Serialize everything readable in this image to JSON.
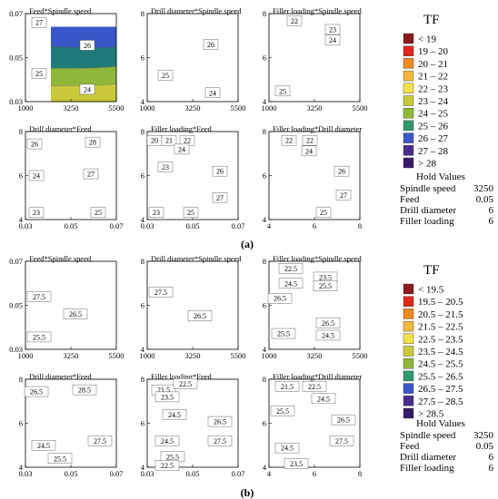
{
  "colors": {
    "c0": "#8c1a1a",
    "c1": "#e0261b",
    "c2": "#f08a1c",
    "c3": "#f5b83c",
    "c4": "#f6e04a",
    "c5": "#c9c93a",
    "c6": "#8fb83a",
    "c7": "#2f9a6a",
    "c8": "#1f7a7a",
    "c9": "#3b56c8",
    "c10": "#4a2a8c",
    "c11": "#3a1a6a"
  },
  "chart_data": [
    {
      "panel": "a",
      "caption": "(a)",
      "legend": {
        "title": "TF",
        "entries": [
          "< 19",
          "19 – 20",
          "20 – 21",
          "21 – 22",
          "22 – 23",
          "23 – 24",
          "24 – 25",
          "25 – 26",
          "26 – 27",
          "27 – 28",
          "> 28"
        ],
        "colors": [
          "#8c1a1a",
          "#e0261b",
          "#f08a1c",
          "#f5b83c",
          "#f6e04a",
          "#c9c93a",
          "#8fb83a",
          "#2f9a6a",
          "#3b56c8",
          "#4a2a8c",
          "#3a1a6a"
        ]
      },
      "hold": {
        "title": "Hold Values",
        "rows": [
          {
            "name": "Spindle speed",
            "value": "3250"
          },
          {
            "name": "Feed",
            "value": "0.05"
          },
          {
            "name": "Drill diameter",
            "value": "6"
          },
          {
            "name": "Filler loading",
            "value": "6"
          }
        ]
      },
      "plots": [
        {
          "type": "heatmap",
          "title": "Feed*Spindle speed",
          "x_ticks": [
            "1000",
            "3250",
            "5500"
          ],
          "y_ticks": [
            "0.03",
            "0.05",
            "0.07"
          ],
          "labels": [
            "27",
            "26",
            "25",
            "24"
          ]
        },
        {
          "type": "heatmap",
          "title": "Drill diameter*Spindle speed",
          "x_ticks": [
            "1000",
            "3250",
            "5500"
          ],
          "y_ticks": [
            "4",
            "6",
            "8"
          ],
          "labels": [
            "26",
            "25",
            "24"
          ]
        },
        {
          "type": "heatmap",
          "title": "Filler loading*Spindle speed",
          "x_ticks": [
            "1000",
            "3250",
            "5500"
          ],
          "y_ticks": [
            "4",
            "6",
            "8"
          ],
          "labels": [
            "22",
            "23",
            "24",
            "25"
          ]
        },
        {
          "type": "heatmap",
          "title": "Drill diameter*Feed",
          "x_ticks": [
            "0.03",
            "0.05",
            "0.07"
          ],
          "y_ticks": [
            "4",
            "6",
            "8"
          ],
          "labels": [
            "26",
            "28",
            "24",
            "27",
            "23",
            "25"
          ]
        },
        {
          "type": "heatmap",
          "title": "Filler loading*Feed",
          "x_ticks": [
            "0.03",
            "0.05",
            "0.07"
          ],
          "y_ticks": [
            "4",
            "6",
            "8"
          ],
          "labels": [
            "20",
            "21",
            "22",
            "24",
            "23",
            "26",
            "27",
            "23",
            "25"
          ]
        },
        {
          "type": "heatmap",
          "title": "Filler loading*Drill diameter",
          "x_ticks": [
            "4",
            "6",
            "8"
          ],
          "y_ticks": [
            "4",
            "6",
            "8"
          ],
          "labels": [
            "22",
            "22",
            "24",
            "26",
            "27",
            "25"
          ]
        }
      ]
    },
    {
      "panel": "b",
      "caption": "(b)",
      "legend": {
        "title": "TF",
        "entries": [
          "< 19.5",
          "19.5 – 20.5",
          "20.5 – 21.5",
          "21.5 – 22.5",
          "22.5 – 23.5",
          "23.5 – 24.5",
          "24.5 – 25.5",
          "25.5 – 26.5",
          "26.5 – 27.5",
          "27.5 – 28.5",
          "> 28.5"
        ],
        "colors": [
          "#8c1a1a",
          "#e0261b",
          "#f08a1c",
          "#f5b83c",
          "#f6e04a",
          "#c9c93a",
          "#8fb83a",
          "#2f9a6a",
          "#3b56c8",
          "#4a2a8c",
          "#3a1a6a"
        ]
      },
      "hold": {
        "title": "Hold Values",
        "rows": [
          {
            "name": "Spindle speed",
            "value": "3250"
          },
          {
            "name": "Feed",
            "value": "0.05"
          },
          {
            "name": "Drill diameter",
            "value": "6"
          },
          {
            "name": "Filler loading",
            "value": "6"
          }
        ]
      },
      "plots": [
        {
          "type": "heatmap",
          "title": "Feed*Spindle speed",
          "x_ticks": [
            "1000",
            "3250",
            "5500"
          ],
          "y_ticks": [
            "0.03",
            "0.05",
            "0.07"
          ],
          "labels": [
            "27.5",
            "26.5",
            "25.5"
          ]
        },
        {
          "type": "heatmap",
          "title": "Drill diameter*Spindle speed",
          "x_ticks": [
            "1000",
            "3250",
            "5500"
          ],
          "y_ticks": [
            "4",
            "6",
            "8"
          ],
          "labels": [
            "27.5",
            "26.5"
          ]
        },
        {
          "type": "heatmap",
          "title": "Filler loading*Spindle speed",
          "x_ticks": [
            "1000",
            "3250",
            "5500"
          ],
          "y_ticks": [
            "4",
            "6",
            "8"
          ],
          "labels": [
            "22.5",
            "23.5",
            "24.5",
            "25.5",
            "26.5",
            "26.5",
            "25.5",
            "24.5"
          ]
        },
        {
          "type": "heatmap",
          "title": "Drill diameter*Feed",
          "x_ticks": [
            "0.03",
            "0.05",
            "0.07"
          ],
          "y_ticks": [
            "4",
            "6",
            "8"
          ],
          "labels": [
            "26.5",
            "28.5",
            "27.5",
            "24.5",
            "25.5"
          ]
        },
        {
          "type": "heatmap",
          "title": "Filler loading*Feed",
          "x_ticks": [
            "0.03",
            "0.05",
            "0.07"
          ],
          "y_ticks": [
            "4",
            "6",
            "8"
          ],
          "labels": [
            "21.5",
            "22.5",
            "23.5",
            "24.5",
            "25.5",
            "26.5",
            "27.5",
            "24.5",
            "22.5"
          ]
        },
        {
          "type": "heatmap",
          "title": "Filler loading*Drill diameter",
          "x_ticks": [
            "4",
            "6",
            "8"
          ],
          "y_ticks": [
            "4",
            "6",
            "8"
          ],
          "labels": [
            "21.5",
            "22.5",
            "24.5",
            "25.5",
            "26.5",
            "27.5",
            "24.5",
            "23.5"
          ]
        }
      ]
    }
  ]
}
